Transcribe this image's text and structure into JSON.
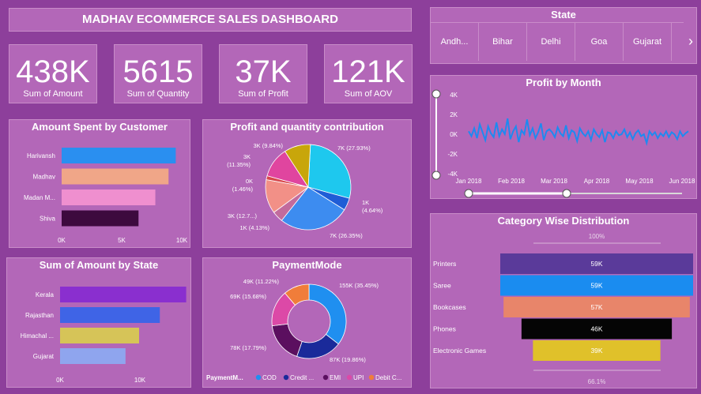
{
  "header": {
    "title": "MADHAV ECOMMERCE SALES DASHBOARD"
  },
  "kpis": [
    {
      "value": "438K",
      "label": "Sum of Amount"
    },
    {
      "value": "5615",
      "label": "Sum of Quantity"
    },
    {
      "value": "37K",
      "label": "Sum of Profit"
    },
    {
      "value": "121K",
      "label": "Sum of AOV"
    }
  ],
  "state_slicer": {
    "title": "State",
    "items": [
      "Andh...",
      "Bihar",
      "Delhi",
      "Goa",
      "Gujarat"
    ],
    "next_arrow": "›"
  },
  "colors": {
    "background": "#8d3f9b",
    "panel": "#b367b8"
  },
  "chart_data": [
    {
      "id": "amount_by_customer",
      "type": "bar",
      "title": "Amount Spent by Customer",
      "categories": [
        "Harivansh",
        "Madhav",
        "Madan M...",
        "Shiva"
      ],
      "values": [
        9.5,
        8.9,
        7.8,
        6.4
      ],
      "xticks": [
        "0K",
        "5K",
        "10K"
      ],
      "xlim": [
        0,
        10
      ],
      "colors": [
        "#2a8ff0",
        "#f0a688",
        "#ef8fcf",
        "#3d0a3e"
      ]
    },
    {
      "id": "profit_qty_contribution",
      "type": "pie",
      "title": "Profit and quantity contribution",
      "slices": [
        {
          "label": "7K (27.93%)",
          "value": 27.93,
          "color": "#1ec8ee"
        },
        {
          "label": "1K (4.64%)",
          "value": 4.64,
          "color": "#1f5dd6"
        },
        {
          "label": "7K (26.35%)",
          "value": 26.35,
          "color": "#3d8cf0"
        },
        {
          "label": "1K (4.13%)",
          "value": 4.13,
          "color": "#c26b9d"
        },
        {
          "label": "3K (12.7...)",
          "value": 12.7,
          "color": "#f29087"
        },
        {
          "label": "0K (1.46%)",
          "value": 1.46,
          "color": "#d7474c"
        },
        {
          "label": "3K (11.35%)",
          "value": 11.35,
          "color": "#e0459f"
        },
        {
          "label": "3K (9.84%)",
          "value": 9.84,
          "color": "#c8a60a"
        }
      ]
    },
    {
      "id": "profit_by_month",
      "type": "line",
      "title": "Profit by Month",
      "yticks": [
        "4K",
        "2K",
        "0K",
        "-2K",
        "-4K"
      ],
      "ylim": [
        -4,
        4
      ],
      "xticks": [
        "Jan 2018",
        "Feb 2018",
        "Mar 2018",
        "Apr 2018",
        "May 2018",
        "Jun 2018"
      ],
      "series": [
        {
          "values": [
            0.3,
            -0.2,
            0.6,
            -0.4,
            1.0,
            0.2,
            -0.6,
            0.8,
            0.1,
            -0.3,
            1.2,
            -0.2,
            0.5,
            0.0,
            1.6,
            -0.5,
            0.3,
            0.8,
            -0.8,
            0.4,
            0.0,
            1.5,
            -0.1,
            0.6,
            -0.4,
            0.2,
            1.1,
            -0.6,
            0.3,
            0.5,
            0.2,
            -0.3,
            0.7,
            0.1,
            -0.2,
            0.9,
            -0.4,
            0.4,
            0.2,
            -0.7,
            0.6,
            0.1,
            -0.2,
            0.3,
            -0.6,
            0.5,
            0.0,
            -0.3,
            0.4,
            -0.8,
            0.2,
            0.1,
            -0.4,
            0.3,
            -0.1,
            0.0,
            0.5,
            -0.3,
            0.2,
            -0.5,
            0.1,
            0.4,
            -0.2,
            0.0,
            -0.9,
            0.3,
            -0.1,
            0.2,
            -0.4,
            0.1,
            -0.2,
            0.3,
            -0.3,
            0.2,
            0.0,
            -0.5,
            0.3,
            -0.2,
            0.1,
            0.3
          ]
        }
      ]
    },
    {
      "id": "amount_by_state",
      "type": "bar",
      "title": "Sum of Amount by State",
      "categories": [
        "Kerala",
        "Rajasthan",
        "Himachal ...",
        "Gujarat"
      ],
      "values": [
        15.8,
        12.5,
        9.9,
        8.2
      ],
      "xticks": [
        "0K",
        "10K"
      ],
      "xlim": [
        0,
        20
      ],
      "colors": [
        "#8a2fcf",
        "#3f64e6",
        "#d6c458",
        "#8fa5ee"
      ]
    },
    {
      "id": "payment_mode",
      "type": "pie",
      "title": "PaymentMode",
      "legend_title": "PaymentM...",
      "slices": [
        {
          "label": "155K (35.45%)",
          "value": 35.45,
          "color": "#1f8ff0",
          "legend": "COD"
        },
        {
          "label": "87K (19.86%)",
          "value": 19.86,
          "color": "#1a2a9a",
          "legend": "Credit ..."
        },
        {
          "label": "78K (17.79%)",
          "value": 17.79,
          "color": "#5b0f5f",
          "legend": "EMI"
        },
        {
          "label": "69K (15.68%)",
          "value": 15.68,
          "color": "#dc49a7",
          "legend": "UPI"
        },
        {
          "label": "49K (11.22%)",
          "value": 11.22,
          "color": "#f07d3a",
          "legend": "Debit C..."
        }
      ]
    },
    {
      "id": "category_distribution",
      "type": "bar",
      "title": "Category Wise Distribution",
      "top_label": "100%",
      "bottom_label": "66.1%",
      "categories": [
        "Printers",
        "Saree",
        "Bookcases",
        "Phones",
        "Electronic Games"
      ],
      "values": [
        59,
        59,
        57,
        46,
        39
      ],
      "labels": [
        "59K",
        "59K",
        "57K",
        "46K",
        "39K"
      ],
      "colors": [
        "#5a3a9a",
        "#1a8cf0",
        "#e8856a",
        "#050505",
        "#e0c12a"
      ]
    }
  ]
}
